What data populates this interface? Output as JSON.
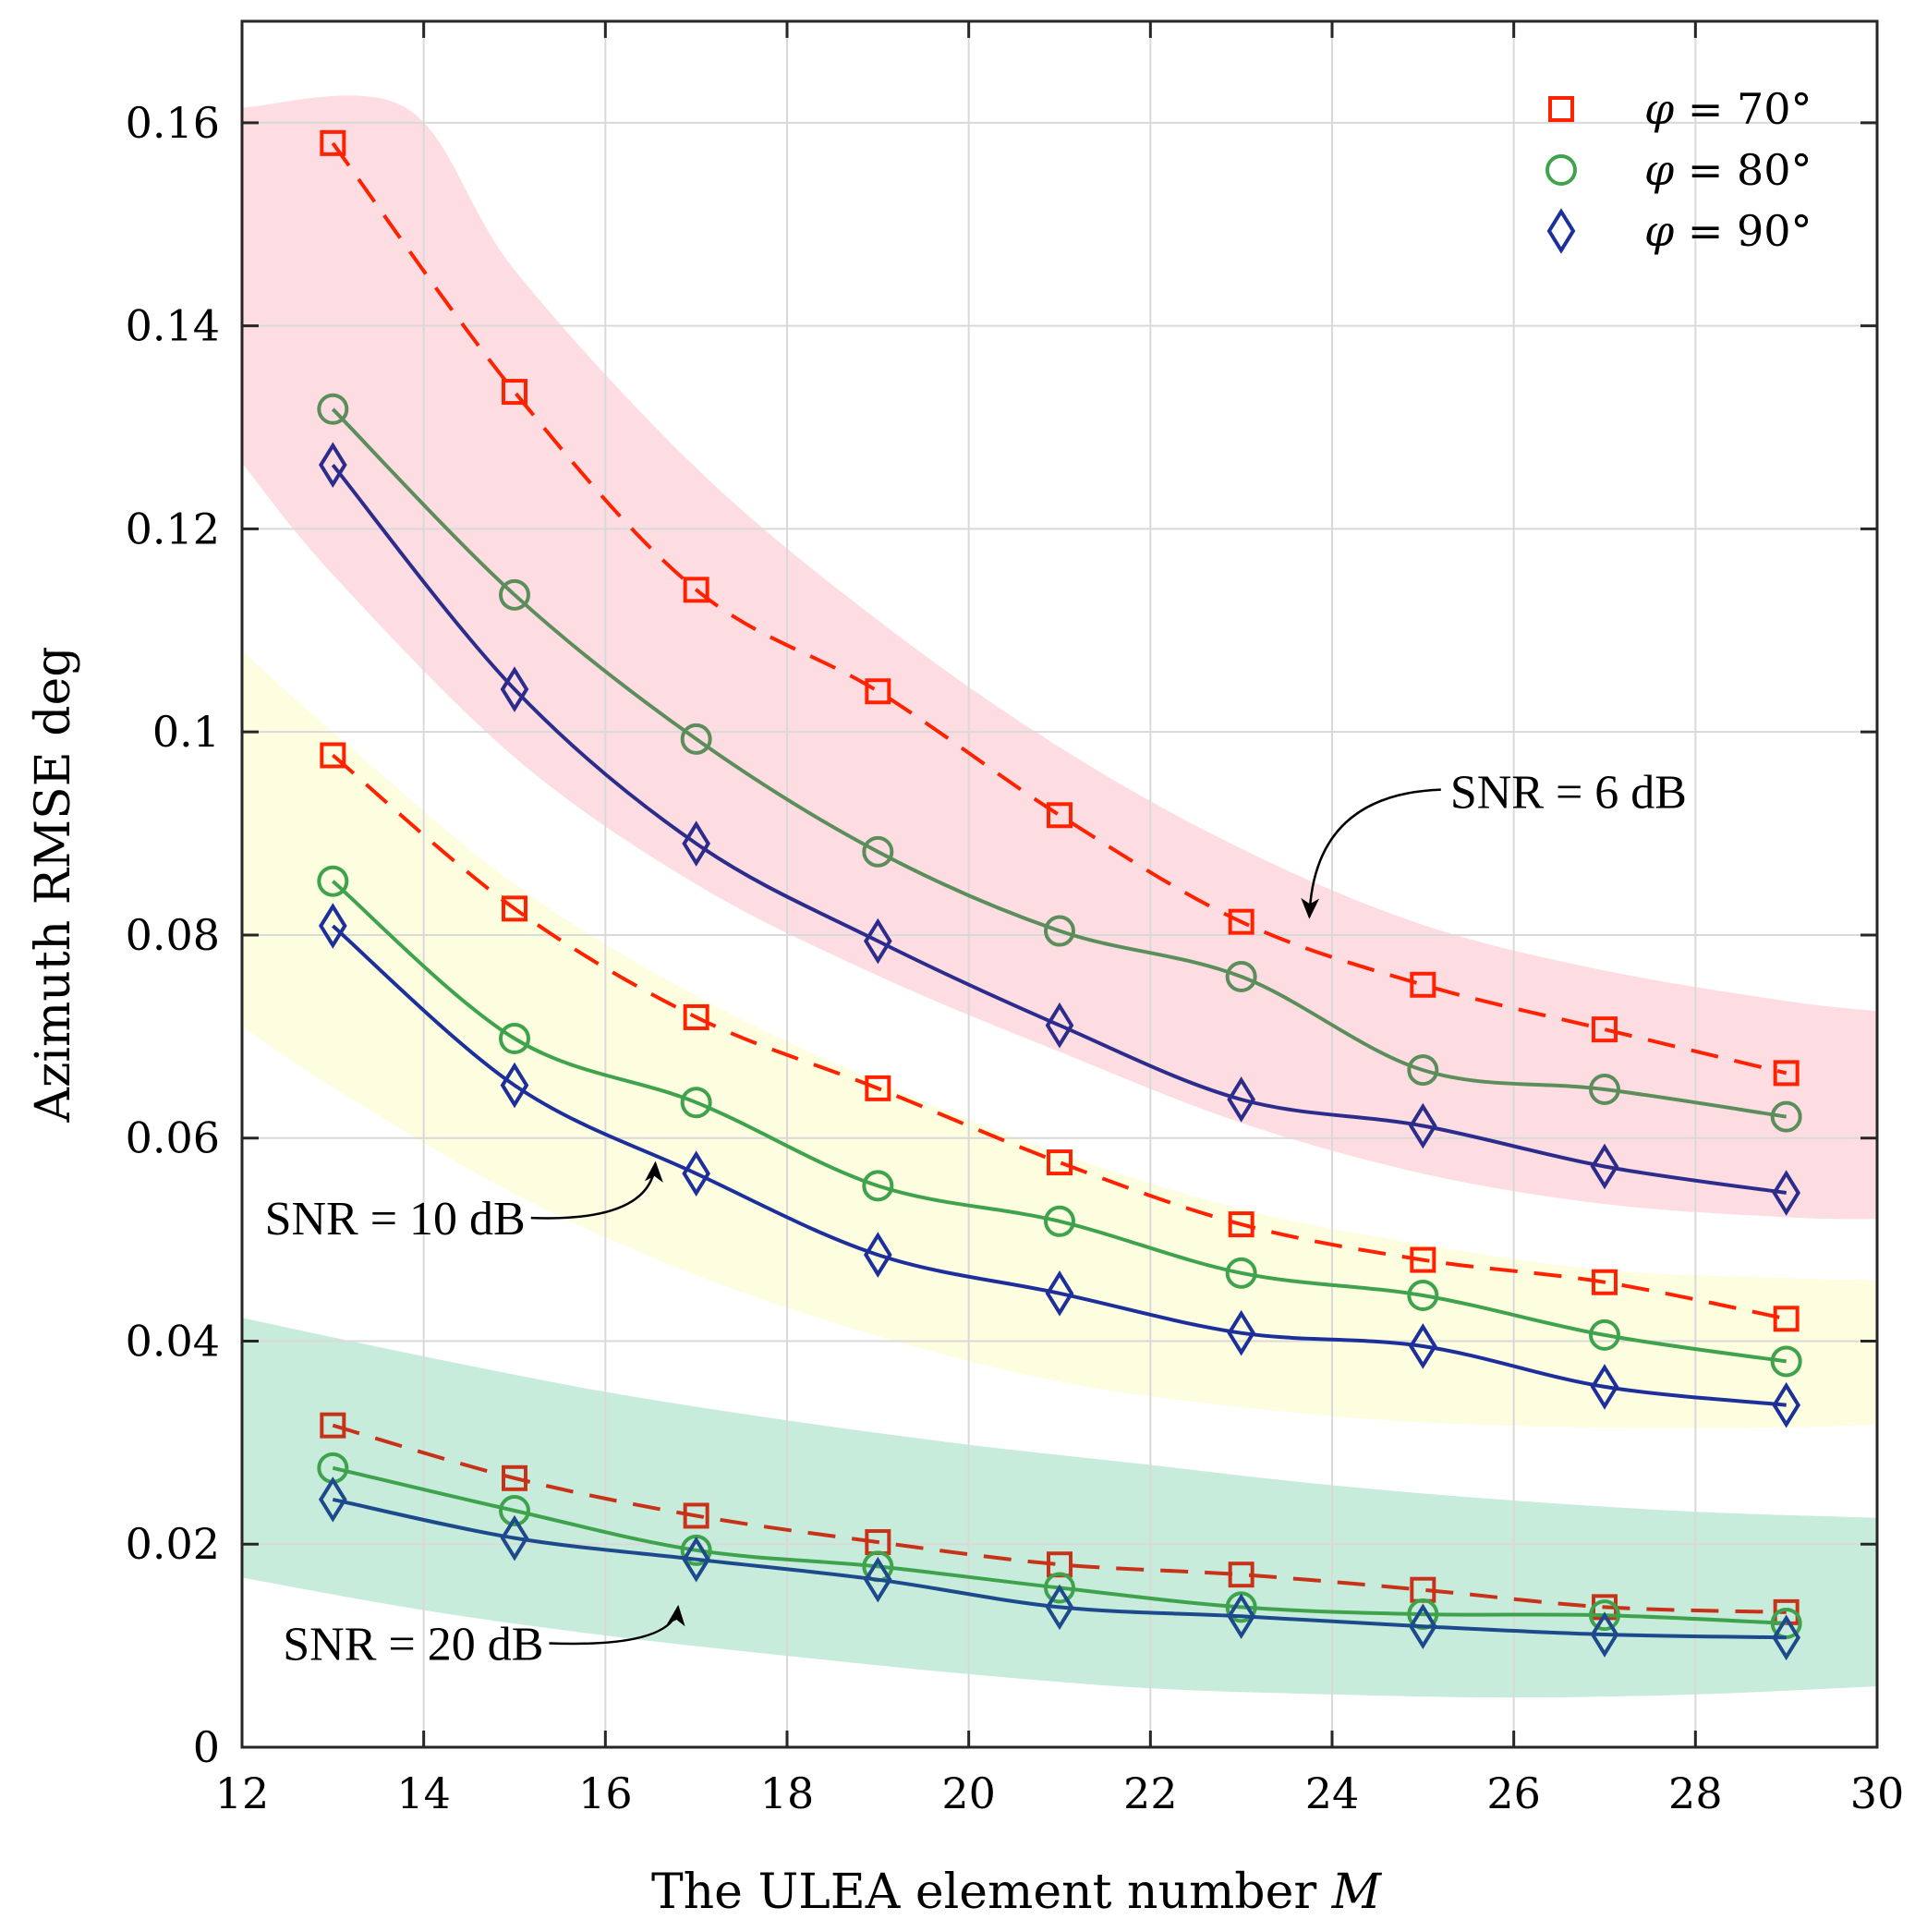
{
  "chart_data": {
    "type": "line",
    "xlabel": "The ULEA element number",
    "xlabel_var": "M",
    "ylabel": "Azimuth RMSE deg",
    "xlim": [
      12,
      30
    ],
    "ylim": [
      0,
      0.17
    ],
    "xticks": [
      12,
      14,
      16,
      18,
      20,
      22,
      24,
      26,
      28,
      30
    ],
    "yticks": [
      0,
      0.02,
      0.04,
      0.06,
      0.08,
      0.1,
      0.12,
      0.14,
      0.16
    ],
    "ytick_labels": [
      "0",
      "0.02",
      "0.04",
      "0.06",
      "0.08",
      "0.1",
      "0.12",
      "0.14",
      "0.16"
    ],
    "grid": true,
    "legend_position": "top-right",
    "legend": [
      {
        "symbol": "φ",
        "value": "= 70°",
        "marker": "square",
        "color": "#ff2200"
      },
      {
        "symbol": "φ",
        "value": "= 80°",
        "marker": "circle",
        "color": "#3fa34d"
      },
      {
        "symbol": "φ",
        "value": "= 90°",
        "marker": "diamond",
        "color": "#1c2f9a"
      }
    ],
    "x": [
      13,
      15,
      17,
      19,
      21,
      23,
      25,
      27,
      29
    ],
    "groups": [
      {
        "name": "SNR = 6 dB",
        "band_color": "#fddde1",
        "band_upper": [
          [
            12,
            0.1615
          ],
          [
            13.8,
            0.1615
          ],
          [
            15,
            0.1455
          ],
          [
            17,
            0.126
          ],
          [
            19,
            0.111
          ],
          [
            21,
            0.0985
          ],
          [
            23,
            0.0885
          ],
          [
            25,
            0.081
          ],
          [
            27,
            0.0765
          ],
          [
            29,
            0.0735
          ],
          [
            30,
            0.0725
          ]
        ],
        "band_lower": [
          [
            12,
            0.1265
          ],
          [
            13,
            0.1155
          ],
          [
            15,
            0.0975
          ],
          [
            17,
            0.085
          ],
          [
            19,
            0.076
          ],
          [
            21,
            0.0685
          ],
          [
            23,
            0.0615
          ],
          [
            25,
            0.0565
          ],
          [
            27,
            0.0535
          ],
          [
            29,
            0.0522
          ],
          [
            30,
            0.052
          ]
        ],
        "series": [
          {
            "name": "φ = 70°",
            "marker": "square",
            "color": "#ff2200",
            "dash": true,
            "values": [
              0.158,
              0.1335,
              0.114,
              0.104,
              0.0918,
              0.0813,
              0.0751,
              0.0707,
              0.0664
            ]
          },
          {
            "name": "φ = 80°",
            "marker": "circle",
            "color": "#5c8e5c",
            "dash": false,
            "values": [
              0.1318,
              0.1135,
              0.0993,
              0.0882,
              0.0804,
              0.0759,
              0.0667,
              0.0648,
              0.0621
            ]
          },
          {
            "name": "φ = 90°",
            "marker": "diamond",
            "color": "#2c2c8c",
            "dash": false,
            "values": [
              0.1263,
              0.1042,
              0.089,
              0.0794,
              0.0711,
              0.0638,
              0.0612,
              0.0572,
              0.0546
            ]
          }
        ]
      },
      {
        "name": "SNR = 10 dB",
        "band_color": "#fdfde0",
        "band_upper": [
          [
            12,
            0.108
          ],
          [
            13,
            0.1
          ],
          [
            15,
            0.085
          ],
          [
            17,
            0.074
          ],
          [
            19,
            0.0655
          ],
          [
            21,
            0.0585
          ],
          [
            23,
            0.053
          ],
          [
            25,
            0.0495
          ],
          [
            27,
            0.047
          ],
          [
            29,
            0.0462
          ],
          [
            30,
            0.046
          ]
        ],
        "band_lower": [
          [
            12,
            0.071
          ],
          [
            13,
            0.065
          ],
          [
            15,
            0.0545
          ],
          [
            17,
            0.0465
          ],
          [
            19,
            0.0405
          ],
          [
            21,
            0.036
          ],
          [
            23,
            0.0335
          ],
          [
            25,
            0.032
          ],
          [
            27,
            0.0315
          ],
          [
            29,
            0.0315
          ],
          [
            30,
            0.0318
          ]
        ],
        "series": [
          {
            "name": "φ = 70°",
            "marker": "square",
            "color": "#ff2200",
            "dash": true,
            "values": [
              0.0977,
              0.0826,
              0.0719,
              0.0649,
              0.0576,
              0.0515,
              0.048,
              0.0458,
              0.0422
            ]
          },
          {
            "name": "φ = 80°",
            "marker": "circle",
            "color": "#3fa34d",
            "dash": false,
            "values": [
              0.0853,
              0.0698,
              0.0635,
              0.0553,
              0.0518,
              0.0467,
              0.0445,
              0.0406,
              0.038
            ]
          },
          {
            "name": "φ = 90°",
            "marker": "diamond",
            "color": "#1c2f9a",
            "dash": false,
            "values": [
              0.0809,
              0.0652,
              0.0565,
              0.0485,
              0.0447,
              0.0408,
              0.0395,
              0.0355,
              0.0337
            ]
          }
        ]
      },
      {
        "name": "SNR = 20 dB",
        "band_color": "#c8ecdb",
        "band_upper": [
          [
            12,
            0.0423
          ],
          [
            14,
            0.0385
          ],
          [
            16,
            0.035
          ],
          [
            18,
            0.0322
          ],
          [
            20,
            0.0298
          ],
          [
            22,
            0.0278
          ],
          [
            24,
            0.0258
          ],
          [
            26,
            0.0243
          ],
          [
            28,
            0.0232
          ],
          [
            30,
            0.0226
          ]
        ],
        "band_lower": [
          [
            12,
            0.0167
          ],
          [
            14,
            0.0135
          ],
          [
            16,
            0.011
          ],
          [
            18,
            0.009
          ],
          [
            20,
            0.0072
          ],
          [
            22,
            0.0058
          ],
          [
            24,
            0.0052
          ],
          [
            26,
            0.0049
          ],
          [
            28,
            0.0052
          ],
          [
            30,
            0.006
          ]
        ],
        "series": [
          {
            "name": "φ = 70°",
            "marker": "square",
            "color": "#c83218",
            "dash": true,
            "values": [
              0.0317,
              0.0265,
              0.0228,
              0.0202,
              0.018,
              0.017,
              0.0155,
              0.0138,
              0.0133
            ]
          },
          {
            "name": "φ = 80°",
            "marker": "circle",
            "color": "#3fa34d",
            "dash": false,
            "values": [
              0.0275,
              0.0233,
              0.0194,
              0.0178,
              0.0157,
              0.0138,
              0.0131,
              0.013,
              0.0122
            ]
          },
          {
            "name": "φ = 90°",
            "marker": "diamond",
            "color": "#1c4a8c",
            "dash": false,
            "values": [
              0.0244,
              0.0206,
              0.0185,
              0.0165,
              0.0138,
              0.0129,
              0.0119,
              0.0111,
              0.0108
            ]
          }
        ]
      }
    ],
    "annotations": [
      {
        "text": "SNR = 6 dB",
        "text_x": 25.3,
        "text_y": 0.0925,
        "arrow_to_x": 23.75,
        "arrow_to_y": 0.0818
      },
      {
        "text": "SNR = 10 dB",
        "text_x": 12.25,
        "text_y": 0.0505,
        "arrow_to_x": 16.55,
        "arrow_to_y": 0.0575
      },
      {
        "text": "SNR = 20 dB",
        "text_x": 12.45,
        "text_y": 0.0086,
        "arrow_to_x": 16.8,
        "arrow_to_y": 0.0138
      }
    ]
  }
}
